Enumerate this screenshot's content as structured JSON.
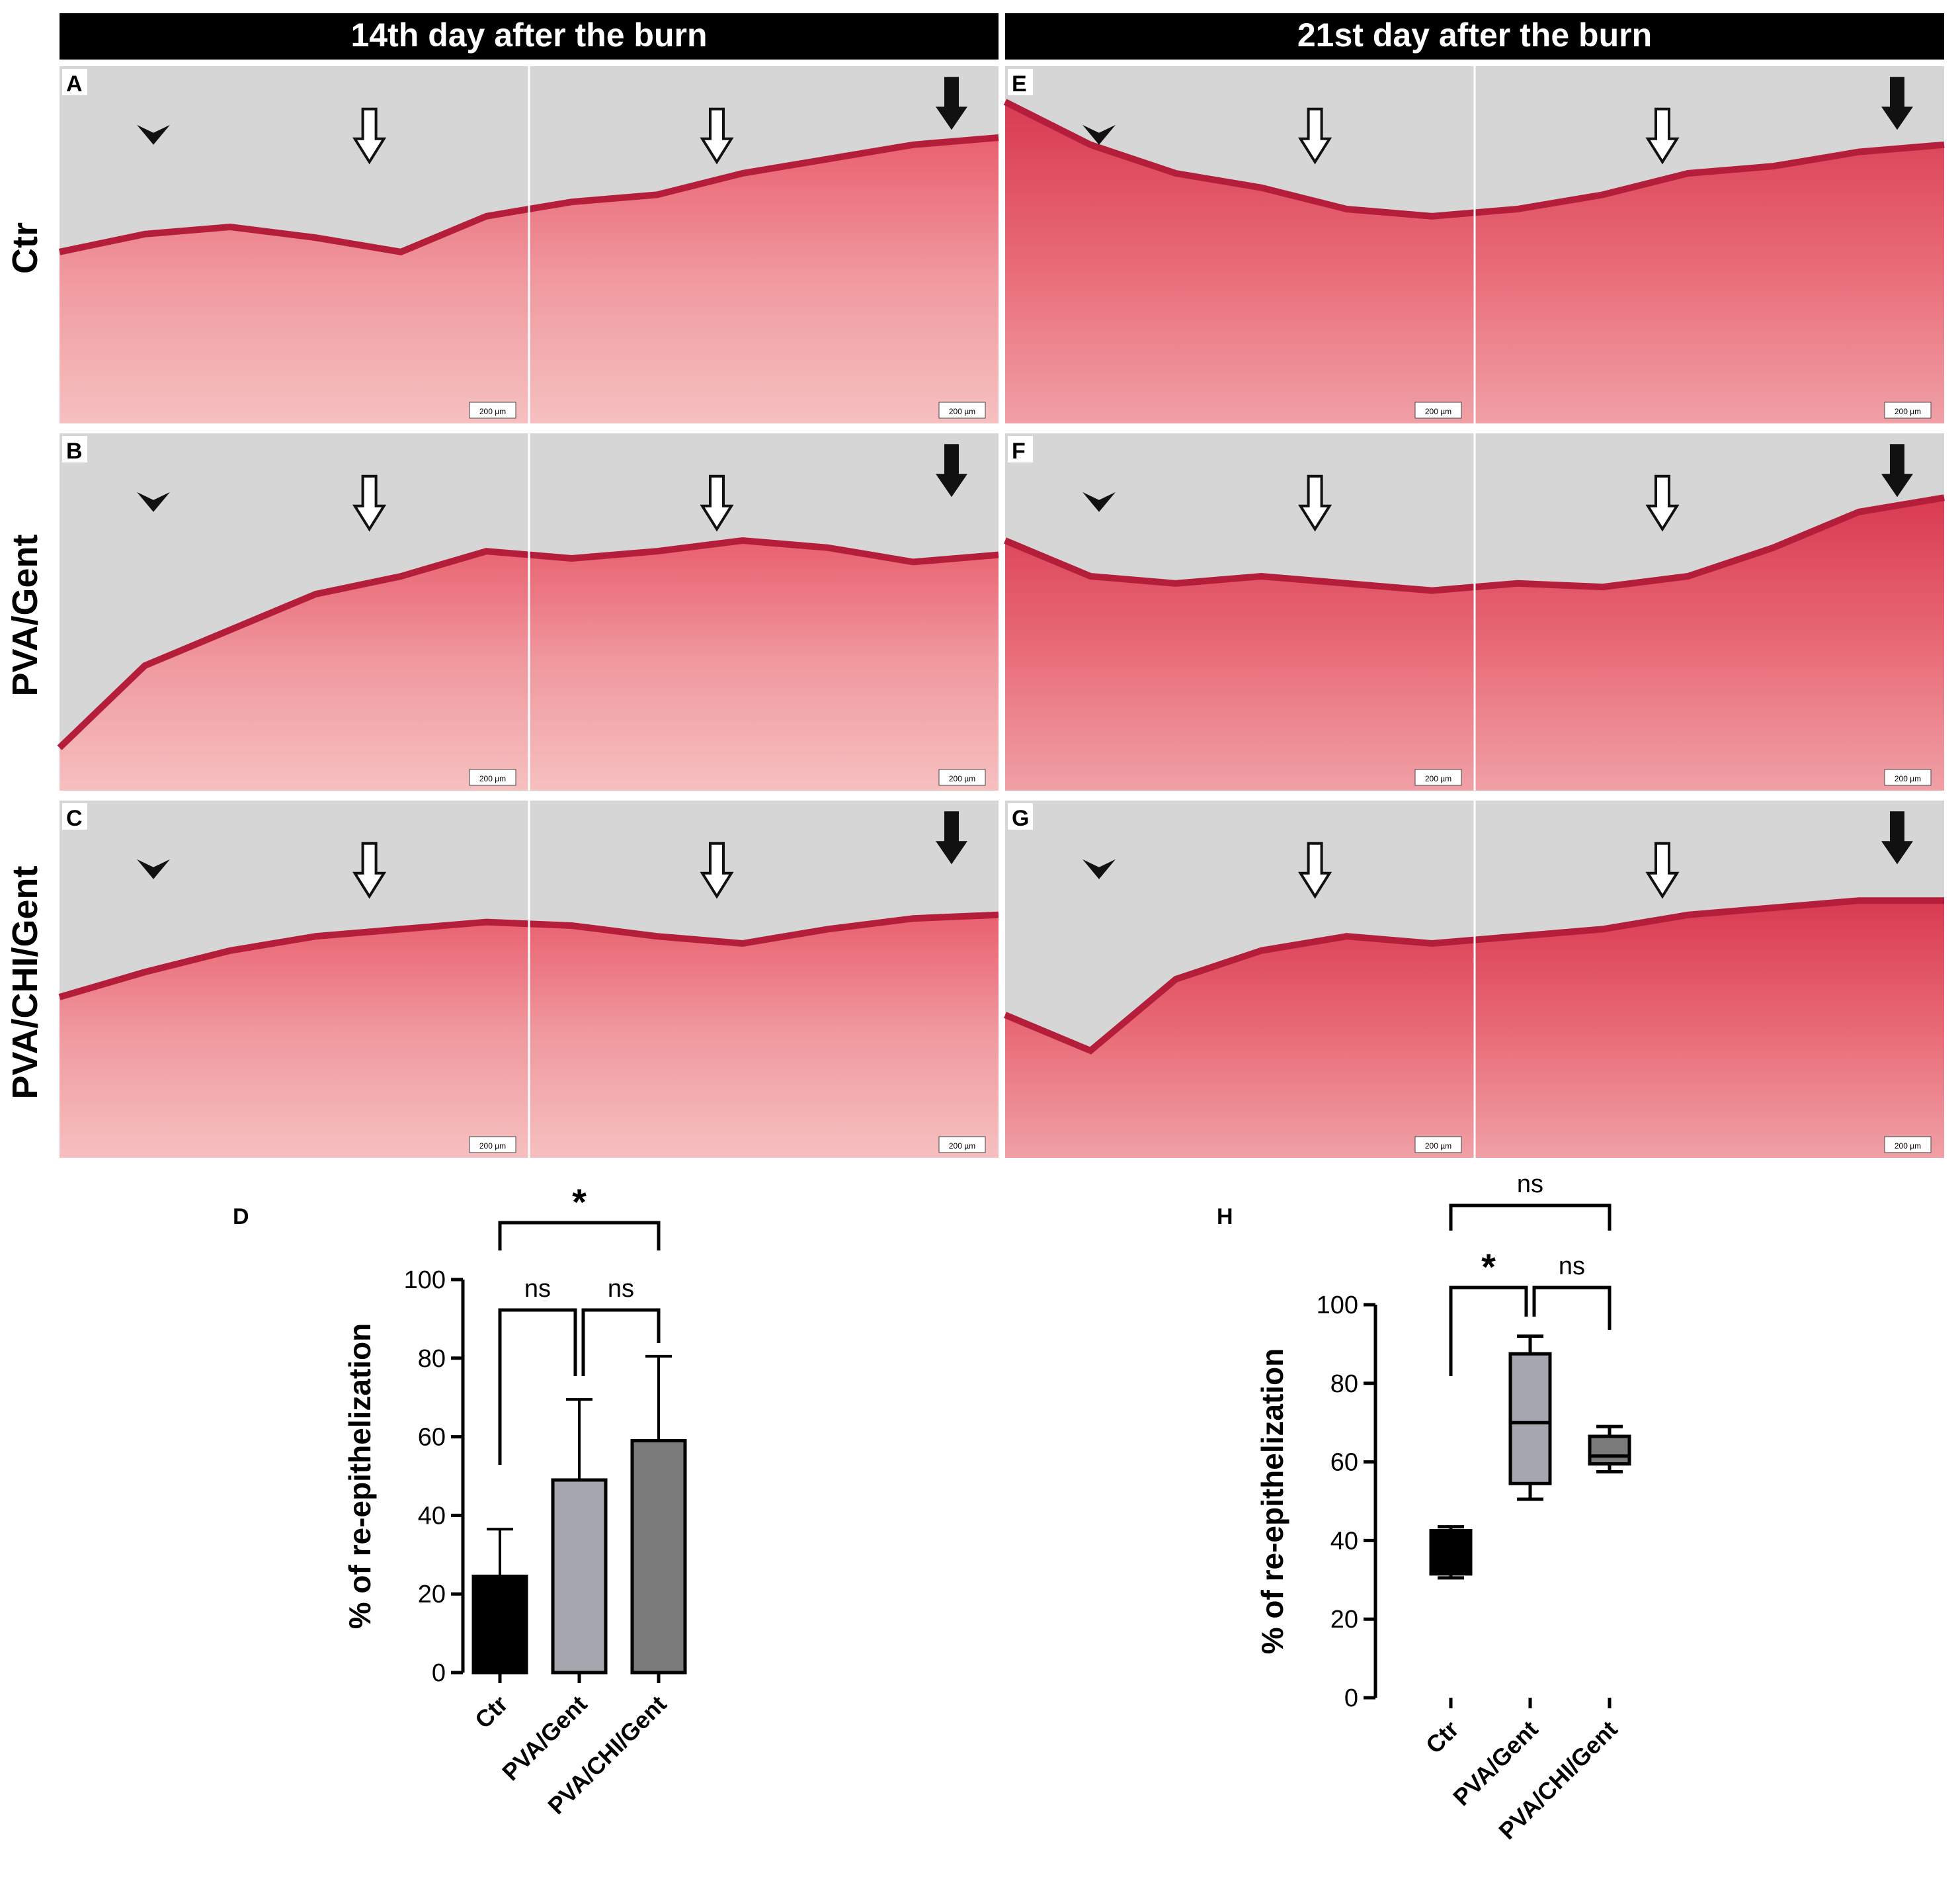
{
  "headers": {
    "left": "14th day after the burn",
    "right": "21st day after the burn"
  },
  "row_labels": [
    "Ctr",
    "PVA/Gent",
    "PVA/CHI/Gent"
  ],
  "panel_letters": [
    "A",
    "B",
    "C",
    "E",
    "F",
    "G"
  ],
  "scale_bar": "200 µm",
  "colors": {
    "tissue_light": "#f3aeb0",
    "tissue_mid": "#ec7f88",
    "tissue_dark": "#dc4a5a",
    "epidermis": "#b41e3a",
    "background_gray": "#d6d6d6"
  },
  "chart_data": [
    {
      "panel": "D",
      "type": "bar",
      "categories": [
        "Ctr",
        "PVA/Gent",
        "PVA/CHI/Gent"
      ],
      "values": [
        24.5,
        49,
        59
      ],
      "errors_upper": [
        36.5,
        69.5,
        80.5
      ],
      "ylabel": "% of re-epithelization",
      "ylim": [
        0,
        100
      ],
      "yticks": [
        0,
        20,
        40,
        60,
        80,
        100
      ],
      "bar_colors": [
        "#000000",
        "#a6a6ae",
        "#7a7a7a"
      ],
      "significance": [
        {
          "pair": [
            "Ctr",
            "PVA/CHI/Gent"
          ],
          "label": "*"
        },
        {
          "pair": [
            "Ctr",
            "PVA/Gent"
          ],
          "label": "ns"
        },
        {
          "pair": [
            "PVA/Gent",
            "PVA/CHI/Gent"
          ],
          "label": "ns"
        }
      ]
    },
    {
      "panel": "H",
      "type": "box",
      "categories": [
        "Ctr",
        "PVA/Gent",
        "PVA/CHI/Gent"
      ],
      "boxes": [
        {
          "min": 30.5,
          "q1": 31.5,
          "median": 37,
          "q3": 42.5,
          "max": 43.5
        },
        {
          "min": 50.5,
          "q1": 54.5,
          "median": 70,
          "q3": 87.5,
          "max": 92
        },
        {
          "min": 57.5,
          "q1": 59.5,
          "median": 61.5,
          "q3": 66.5,
          "max": 69
        }
      ],
      "ylabel": "% of re-epithelization",
      "ylim": [
        0,
        100
      ],
      "yticks": [
        0,
        20,
        40,
        60,
        80,
        100
      ],
      "box_colors": [
        "#000000",
        "#a6a6ae",
        "#7a7a7a"
      ],
      "significance": [
        {
          "pair": [
            "Ctr",
            "PVA/CHI/Gent"
          ],
          "label": "ns"
        },
        {
          "pair": [
            "Ctr",
            "PVA/Gent"
          ],
          "label": "*"
        },
        {
          "pair": [
            "PVA/Gent",
            "PVA/CHI/Gent"
          ],
          "label": "ns"
        }
      ]
    }
  ]
}
